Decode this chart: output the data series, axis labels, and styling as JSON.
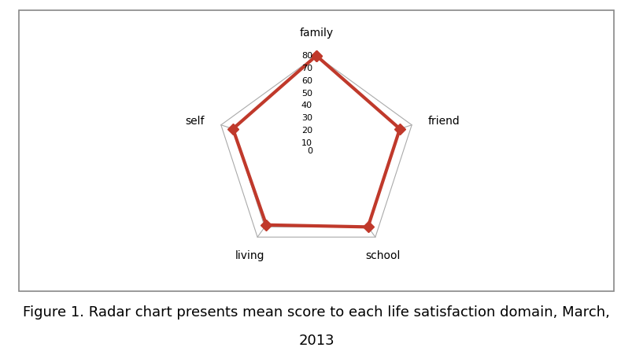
{
  "categories": [
    "family",
    "friend",
    "school",
    "living",
    "self"
  ],
  "values": [
    80,
    70,
    70,
    68,
    70
  ],
  "max_value": 80,
  "tick_values": [
    0,
    10,
    20,
    30,
    40,
    50,
    60,
    70,
    80
  ],
  "line_color": "#C0392B",
  "line_width": 3.0,
  "marker": "D",
  "marker_size": 7,
  "grid_color": "#AAAAAA",
  "fill_color": "#FFFFFF",
  "fill_alpha": 1.0,
  "background_color": "#FFFFFF",
  "caption_line1": "Figure 1. Radar chart presents mean score to each life satisfaction domain, March,",
  "caption_line2": "2013",
  "caption_fontsize": 13,
  "label_fontsize": 10,
  "tick_fontsize": 8
}
